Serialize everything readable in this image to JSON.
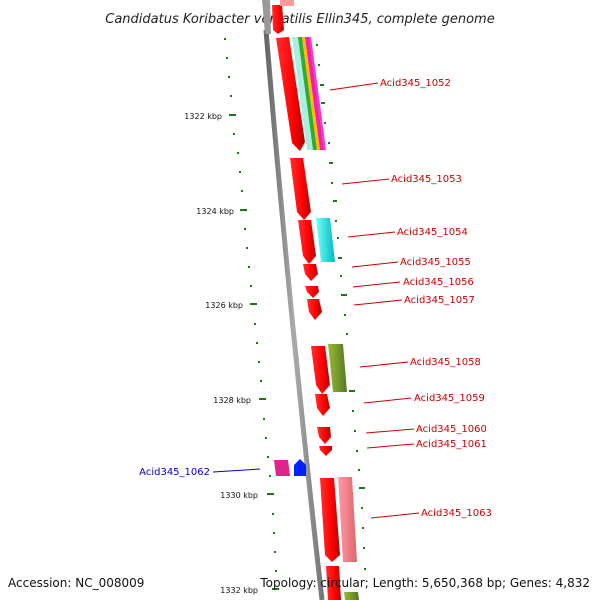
{
  "header": {
    "title": "Candidatus Koribacter versatilis Ellin345, complete genome"
  },
  "footer": {
    "accession": "Accession: NC_008009",
    "topology": "Topology: circular; Length: 5,650,368 bp; Genes: 4,832"
  },
  "colors": {
    "forward_gene": "#ff0000",
    "reverse_gene_label": "#0000cc",
    "forward_label": "#cc0000",
    "tick": "#1a7a1a",
    "backbone": "#888888"
  },
  "scale_ticks": [
    {
      "label": "1322 kbp"
    },
    {
      "label": "1324 kbp"
    },
    {
      "label": "1326 kbp"
    },
    {
      "label": "1328 kbp"
    },
    {
      "label": "1330 kbp"
    },
    {
      "label": "1332 kbp"
    }
  ],
  "genes": [
    {
      "id": "Acid345_1052",
      "strand": "forward"
    },
    {
      "id": "Acid345_1053",
      "strand": "forward"
    },
    {
      "id": "Acid345_1054",
      "strand": "forward"
    },
    {
      "id": "Acid345_1055",
      "strand": "forward"
    },
    {
      "id": "Acid345_1056",
      "strand": "forward"
    },
    {
      "id": "Acid345_1057",
      "strand": "forward"
    },
    {
      "id": "Acid345_1058",
      "strand": "forward"
    },
    {
      "id": "Acid345_1059",
      "strand": "forward"
    },
    {
      "id": "Acid345_1060",
      "strand": "forward"
    },
    {
      "id": "Acid345_1061",
      "strand": "forward"
    },
    {
      "id": "Acid345_1062",
      "strand": "reverse"
    },
    {
      "id": "Acid345_1063",
      "strand": "forward"
    }
  ]
}
